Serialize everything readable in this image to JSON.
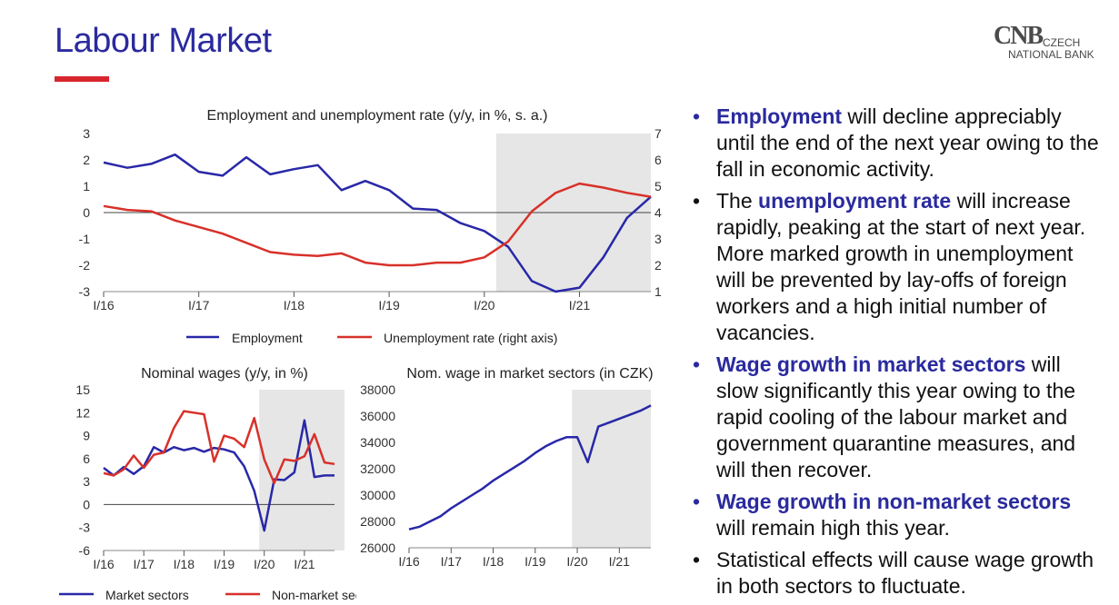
{
  "slide": {
    "title": "Labour Market"
  },
  "logo": {
    "mark": "CNB",
    "line1": "CZECH",
    "line2": "NATIONAL BANK"
  },
  "colors": {
    "title": "#2a2a9e",
    "accent_bar": "#d8262e",
    "series_blue": "#2828a8",
    "series_red": "#d8312a",
    "forecast_shade": "#e6e6e6"
  },
  "bullets": [
    {
      "dot": "•",
      "dot_color": "blue",
      "highlight": "Employment",
      "text": " will decline appreciably until the end of the next year owing to the fall in economic activity."
    },
    {
      "dot": "•",
      "dot_color": "black",
      "prefix": "The ",
      "highlight": "unemployment rate",
      "text": " will increase rapidly, peaking at the start of next year. More marked growth in unemployment will be prevented by lay-offs of foreign workers and a high initial number of vacancies."
    },
    {
      "dot": "•",
      "dot_color": "blue",
      "highlight": "Wage growth in market sectors",
      "text": " will slow significantly this year owing to the rapid cooling of the labour market and government quarantine measures, and will then recover."
    },
    {
      "dot": "•",
      "dot_color": "blue",
      "highlight": "Wage growth in non-market sectors",
      "text": " will remain high this year."
    },
    {
      "dot": "•",
      "dot_color": "black",
      "text": "Statistical effects will cause wage growth in both sectors to fluctuate."
    }
  ],
  "chart_data": [
    {
      "type": "line",
      "title": "Employment and unemployment rate (y/y, in %, s. a.)",
      "x_tick_labels": [
        "I/16",
        "I/17",
        "I/18",
        "I/19",
        "I/20",
        "I/21"
      ],
      "x": [
        2016.0,
        2016.25,
        2016.5,
        2016.75,
        2017.0,
        2017.25,
        2017.5,
        2017.75,
        2018.0,
        2018.25,
        2018.5,
        2018.75,
        2019.0,
        2019.25,
        2019.5,
        2019.75,
        2020.0,
        2020.25,
        2020.5,
        2020.75,
        2021.0,
        2021.25,
        2021.5,
        2021.75
      ],
      "xlim": [
        2016.0,
        2021.75
      ],
      "ylim": [
        -3,
        3
      ],
      "yticks": [
        3,
        2,
        1,
        0,
        -1,
        -2,
        -3
      ],
      "y2lim": [
        1,
        7
      ],
      "y2ticks": [
        7,
        6,
        5,
        4,
        3,
        2,
        1
      ],
      "forecast_start": 2020.125,
      "zero_line": true,
      "legend_position": "bottom",
      "series": [
        {
          "name": "Employment",
          "axis": "left",
          "color": "#2828a8",
          "values": [
            1.9,
            1.7,
            1.85,
            2.2,
            1.55,
            1.4,
            2.1,
            1.45,
            1.65,
            1.8,
            0.85,
            1.2,
            0.85,
            0.15,
            0.1,
            -0.4,
            -0.7,
            -1.3,
            -2.6,
            -3.0,
            -2.85,
            -1.7,
            -0.2,
            0.6
          ]
        },
        {
          "name": "Unemployment rate (right axis)",
          "axis": "right",
          "color": "#d8312a",
          "values": [
            4.25,
            4.1,
            4.05,
            3.7,
            3.45,
            3.2,
            2.85,
            2.5,
            2.4,
            2.35,
            2.45,
            2.1,
            2.0,
            2.0,
            2.1,
            2.1,
            2.3,
            2.9,
            4.05,
            4.75,
            5.1,
            4.95,
            4.75,
            4.6
          ]
        }
      ]
    },
    {
      "type": "line",
      "title": "Nominal wages (y/y, in %)",
      "x_tick_labels": [
        "I/16",
        "I/17",
        "I/18",
        "I/19",
        "I/20",
        "I/21"
      ],
      "x": [
        2016.0,
        2016.25,
        2016.5,
        2016.75,
        2017.0,
        2017.25,
        2017.5,
        2017.75,
        2018.0,
        2018.25,
        2018.5,
        2018.75,
        2019.0,
        2019.25,
        2019.5,
        2019.75,
        2020.0,
        2020.25,
        2020.5,
        2020.75,
        2021.0,
        2021.25,
        2021.5,
        2021.75
      ],
      "xlim": [
        2016.0,
        2021.75
      ],
      "ylim": [
        -6,
        15
      ],
      "yticks": [
        15,
        12,
        9,
        6,
        3,
        0,
        -3,
        -6
      ],
      "forecast_start": 2019.875,
      "zero_line": true,
      "legend_position": "bottom",
      "series": [
        {
          "name": "Market sectors",
          "color": "#2828a8",
          "values": [
            4.8,
            3.8,
            4.9,
            4.0,
            5.0,
            7.5,
            6.8,
            7.5,
            7.1,
            7.4,
            6.9,
            7.4,
            7.2,
            6.8,
            5.0,
            1.8,
            -3.4,
            3.3,
            3.2,
            4.2,
            11.0,
            3.6,
            3.8,
            3.8
          ]
        },
        {
          "name": "Non-market sectors",
          "color": "#d8312a",
          "values": [
            4.1,
            3.8,
            4.6,
            6.4,
            4.8,
            6.5,
            6.8,
            10.0,
            12.2,
            12.0,
            11.8,
            5.6,
            9.0,
            8.6,
            7.5,
            11.3,
            5.9,
            2.8,
            5.9,
            5.7,
            6.3,
            9.2,
            5.5,
            5.3
          ]
        }
      ]
    },
    {
      "type": "line",
      "title": "Nom. wage in market sectors (in CZK)",
      "x_tick_labels": [
        "I/16",
        "I/17",
        "I/18",
        "I/19",
        "I/20",
        "I/21"
      ],
      "x": [
        2016.0,
        2016.25,
        2016.5,
        2016.75,
        2017.0,
        2017.25,
        2017.5,
        2017.75,
        2018.0,
        2018.25,
        2018.5,
        2018.75,
        2019.0,
        2019.25,
        2019.5,
        2019.75,
        2020.0,
        2020.25,
        2020.5,
        2020.75,
        2021.0,
        2021.25,
        2021.5,
        2021.75
      ],
      "xlim": [
        2016.0,
        2021.75
      ],
      "ylim": [
        26000,
        38000
      ],
      "yticks": [
        38000,
        36000,
        34000,
        32000,
        30000,
        28000,
        26000
      ],
      "forecast_start": 2019.875,
      "legend_position": "none",
      "series": [
        {
          "color": "#2828a8",
          "values": [
            27400,
            27600,
            28000,
            28400,
            29000,
            29500,
            30000,
            30500,
            31100,
            31600,
            32100,
            32600,
            33200,
            33700,
            34100,
            34400,
            34400,
            32500,
            35200,
            35500,
            35800,
            36100,
            36400,
            36800
          ]
        }
      ]
    }
  ]
}
